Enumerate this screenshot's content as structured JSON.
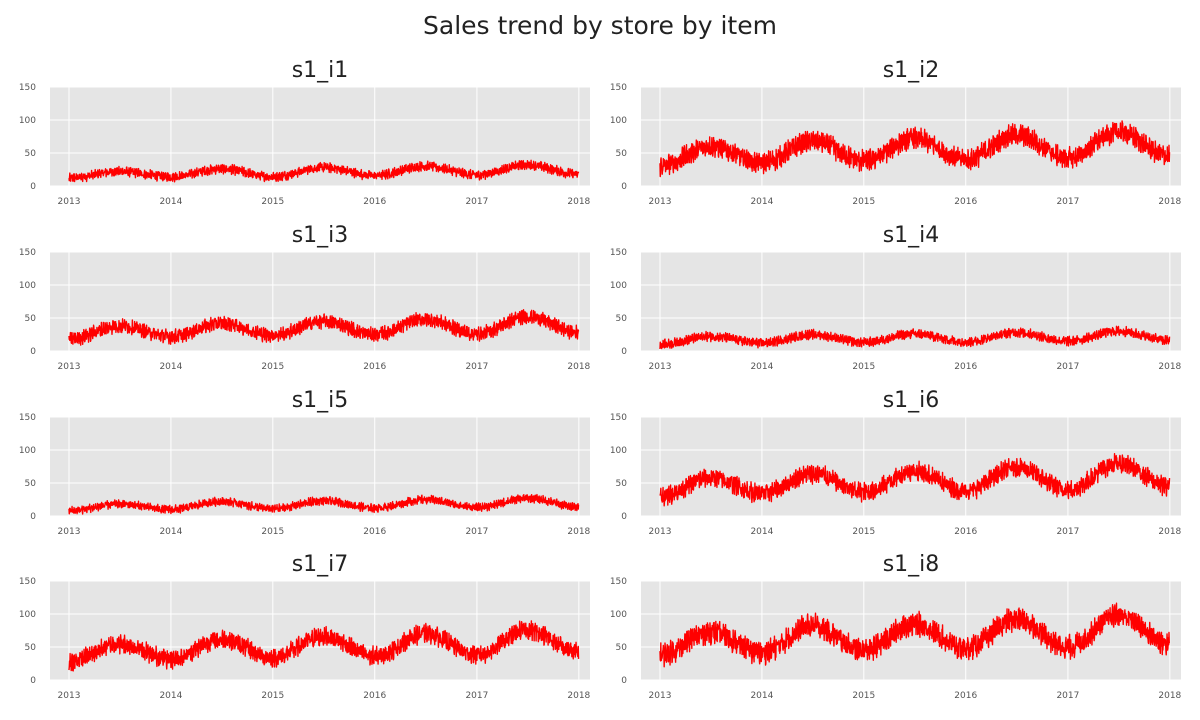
{
  "figure": {
    "title": "Sales trend by store by item"
  },
  "colors": {
    "plot_background": "#e5e5e5",
    "grid": "#ffffff",
    "line": "#ff0000",
    "tick_text": "#555555",
    "title_text": "#222222"
  },
  "chart_data": [
    {
      "type": "line",
      "title": "s1_i1",
      "x": [
        "2013-01-01",
        "2013-07-01",
        "2014-01-01",
        "2014-07-01",
        "2015-01-01",
        "2015-07-01",
        "2016-01-01",
        "2016-07-01",
        "2017-01-01",
        "2017-07-01",
        "2017-12-31"
      ],
      "series": [
        {
          "values": [
            12,
            22,
            14,
            26,
            14,
            28,
            16,
            30,
            17,
            32,
            18
          ],
          "noise": 8
        }
      ],
      "xticks": [
        "2013",
        "2014",
        "2015",
        "2016",
        "2017",
        "2018"
      ],
      "ylim": [
        0,
        150
      ],
      "yticks": [
        0,
        50,
        100,
        150
      ],
      "grid": true
    },
    {
      "type": "line",
      "title": "s1_i2",
      "x": [
        "2013-01-01",
        "2013-07-01",
        "2014-01-01",
        "2014-07-01",
        "2015-01-01",
        "2015-07-01",
        "2016-01-01",
        "2016-07-01",
        "2017-01-01",
        "2017-07-01",
        "2017-12-31"
      ],
      "series": [
        {
          "values": [
            30,
            60,
            35,
            68,
            38,
            72,
            40,
            78,
            42,
            82,
            45
          ],
          "noise": 18
        }
      ],
      "xticks": [
        "2013",
        "2014",
        "2015",
        "2016",
        "2017",
        "2018"
      ],
      "ylim": [
        0,
        150
      ],
      "yticks": [
        0,
        50,
        100,
        150
      ],
      "grid": true
    },
    {
      "type": "line",
      "title": "s1_i3",
      "x": [
        "2013-01-01",
        "2013-07-01",
        "2014-01-01",
        "2014-07-01",
        "2015-01-01",
        "2015-07-01",
        "2016-01-01",
        "2016-07-01",
        "2017-01-01",
        "2017-07-01",
        "2017-12-31"
      ],
      "series": [
        {
          "values": [
            18,
            38,
            22,
            42,
            24,
            45,
            25,
            48,
            26,
            52,
            28
          ],
          "noise": 12
        }
      ],
      "xticks": [
        "2013",
        "2014",
        "2015",
        "2016",
        "2017",
        "2018"
      ],
      "ylim": [
        0,
        150
      ],
      "yticks": [
        0,
        50,
        100,
        150
      ],
      "grid": true
    },
    {
      "type": "line",
      "title": "s1_i4",
      "x": [
        "2013-01-01",
        "2013-07-01",
        "2014-01-01",
        "2014-07-01",
        "2015-01-01",
        "2015-07-01",
        "2016-01-01",
        "2016-07-01",
        "2017-01-01",
        "2017-07-01",
        "2017-12-31"
      ],
      "series": [
        {
          "values": [
            10,
            22,
            12,
            25,
            13,
            26,
            14,
            28,
            15,
            30,
            16
          ],
          "noise": 8
        }
      ],
      "xticks": [
        "2013",
        "2014",
        "2015",
        "2016",
        "2017",
        "2018"
      ],
      "ylim": [
        0,
        150
      ],
      "yticks": [
        0,
        50,
        100,
        150
      ],
      "grid": true
    },
    {
      "type": "line",
      "title": "s1_i5",
      "x": [
        "2013-01-01",
        "2013-07-01",
        "2014-01-01",
        "2014-07-01",
        "2015-01-01",
        "2015-07-01",
        "2016-01-01",
        "2016-07-01",
        "2017-01-01",
        "2017-07-01",
        "2017-12-31"
      ],
      "series": [
        {
          "values": [
            8,
            18,
            10,
            22,
            11,
            23,
            12,
            25,
            13,
            27,
            14
          ],
          "noise": 7
        }
      ],
      "xticks": [
        "2013",
        "2014",
        "2015",
        "2016",
        "2017",
        "2018"
      ],
      "ylim": [
        0,
        150
      ],
      "yticks": [
        0,
        50,
        100,
        150
      ],
      "grid": true
    },
    {
      "type": "line",
      "title": "s1_i6",
      "x": [
        "2013-01-01",
        "2013-07-01",
        "2014-01-01",
        "2014-07-01",
        "2015-01-01",
        "2015-07-01",
        "2016-01-01",
        "2016-07-01",
        "2017-01-01",
        "2017-07-01",
        "2017-12-31"
      ],
      "series": [
        {
          "values": [
            30,
            58,
            34,
            64,
            36,
            68,
            38,
            74,
            40,
            80,
            45
          ],
          "noise": 16
        }
      ],
      "xticks": [
        "2013",
        "2014",
        "2015",
        "2016",
        "2017",
        "2018"
      ],
      "ylim": [
        0,
        150
      ],
      "yticks": [
        0,
        50,
        100,
        150
      ],
      "grid": true
    },
    {
      "type": "line",
      "title": "s1_i7",
      "x": [
        "2013-01-01",
        "2013-07-01",
        "2014-01-01",
        "2014-07-01",
        "2015-01-01",
        "2015-07-01",
        "2016-01-01",
        "2016-07-01",
        "2017-01-01",
        "2017-07-01",
        "2017-12-31"
      ],
      "series": [
        {
          "values": [
            28,
            55,
            32,
            62,
            34,
            66,
            36,
            70,
            38,
            76,
            42
          ],
          "noise": 16
        }
      ],
      "xticks": [
        "2013",
        "2014",
        "2015",
        "2016",
        "2017",
        "2018"
      ],
      "ylim": [
        0,
        150
      ],
      "yticks": [
        0,
        50,
        100,
        150
      ],
      "grid": true
    },
    {
      "type": "line",
      "title": "s1_i8",
      "x": [
        "2013-01-01",
        "2013-07-01",
        "2014-01-01",
        "2014-07-01",
        "2015-01-01",
        "2015-07-01",
        "2016-01-01",
        "2016-07-01",
        "2017-01-01",
        "2017-07-01",
        "2017-12-31"
      ],
      "series": [
        {
          "values": [
            38,
            72,
            42,
            82,
            45,
            85,
            48,
            92,
            50,
            98,
            55
          ],
          "noise": 20
        }
      ],
      "xticks": [
        "2013",
        "2014",
        "2015",
        "2016",
        "2017",
        "2018"
      ],
      "ylim": [
        0,
        150
      ],
      "yticks": [
        0,
        50,
        100,
        150
      ],
      "grid": true
    }
  ]
}
